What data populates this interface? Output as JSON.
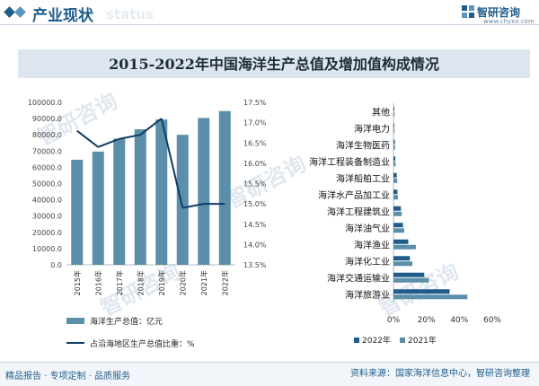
{
  "header": {
    "section_title": "产业现状",
    "watermark_status": "status",
    "brand": "智研咨询",
    "site": "www.chyxx.com"
  },
  "page_title": "2015-2022年中国海洋生产总值及增加值构成情况",
  "watermark_text": "智研咨询",
  "colors": {
    "primary": "#1f5c8a",
    "bar": "#5b8ea8",
    "line": "#0f3d66",
    "bar2022": "#1f5c8a",
    "bar2021": "#5b8ea8"
  },
  "chart_data": [
    {
      "type": "bar+line",
      "categories": [
        "2015年",
        "2016年",
        "2017年",
        "2018年",
        "2019年",
        "2020年",
        "2021年",
        "2022年"
      ],
      "series": [
        {
          "name": "海洋生产总值：亿元",
          "kind": "bar",
          "axis": "left",
          "values": [
            64669,
            69694,
            77611,
            83415,
            89415,
            80010,
            90385,
            94628
          ]
        },
        {
          "name": "占沿海地区生产总值比重：%",
          "kind": "line",
          "axis": "right",
          "values": [
            16.8,
            16.4,
            16.6,
            16.7,
            17.1,
            14.9,
            15.0,
            15.0
          ]
        }
      ],
      "left_axis": {
        "ticks": [
          "0.0",
          "10000.0",
          "20000.0",
          "30000.0",
          "40000.0",
          "50000.0",
          "60000.0",
          "70000.0",
          "80000.0",
          "90000.0",
          "100000.0"
        ],
        "ylim": [
          0,
          100000
        ]
      },
      "right_axis": {
        "ticks": [
          "13.5%",
          "14.0%",
          "14.5%",
          "15.0%",
          "15.5%",
          "16.0%",
          "16.5%",
          "17.0%",
          "17.5%"
        ],
        "ylim": [
          13.5,
          17.5
        ]
      },
      "legend": {
        "placement": "bottom",
        "labels": [
          "海洋生产总值：亿元",
          "占沿海地区生产总值比重：%"
        ]
      }
    },
    {
      "type": "bar",
      "orientation": "horizontal",
      "categories": [
        "其他",
        "海洋电力",
        "海洋生物医药",
        "海洋工程装备制造业",
        "海洋船舶工业",
        "海洋水产品加工业",
        "海洋工程建筑业",
        "海洋油气业",
        "海洋渔业",
        "海洋化工业",
        "海洋交通运输业",
        "海洋旅游业"
      ],
      "series": [
        {
          "name": "2022年",
          "values": [
            0.5,
            0.5,
            0.8,
            1.1,
            2.0,
            2.4,
            4.5,
            5.8,
            9.0,
            10.0,
            18.7,
            34.1
          ]
        },
        {
          "name": "2021年",
          "values": [
            0.6,
            0.6,
            0.9,
            1.3,
            2.3,
            2.7,
            5.0,
            6.5,
            13.6,
            11.5,
            21.5,
            44.9
          ]
        }
      ],
      "x_ticks": [
        "0%",
        "20%",
        "40%",
        "60%"
      ],
      "xlim": [
        0,
        60
      ],
      "legend": {
        "placement": "bottom",
        "labels": [
          "2022年",
          "2021年"
        ]
      }
    }
  ],
  "footer": {
    "left": "精品报告 · 专项定制 · 品质服务",
    "right": "资料来源：国家海洋信息中心，智研咨询整理"
  }
}
